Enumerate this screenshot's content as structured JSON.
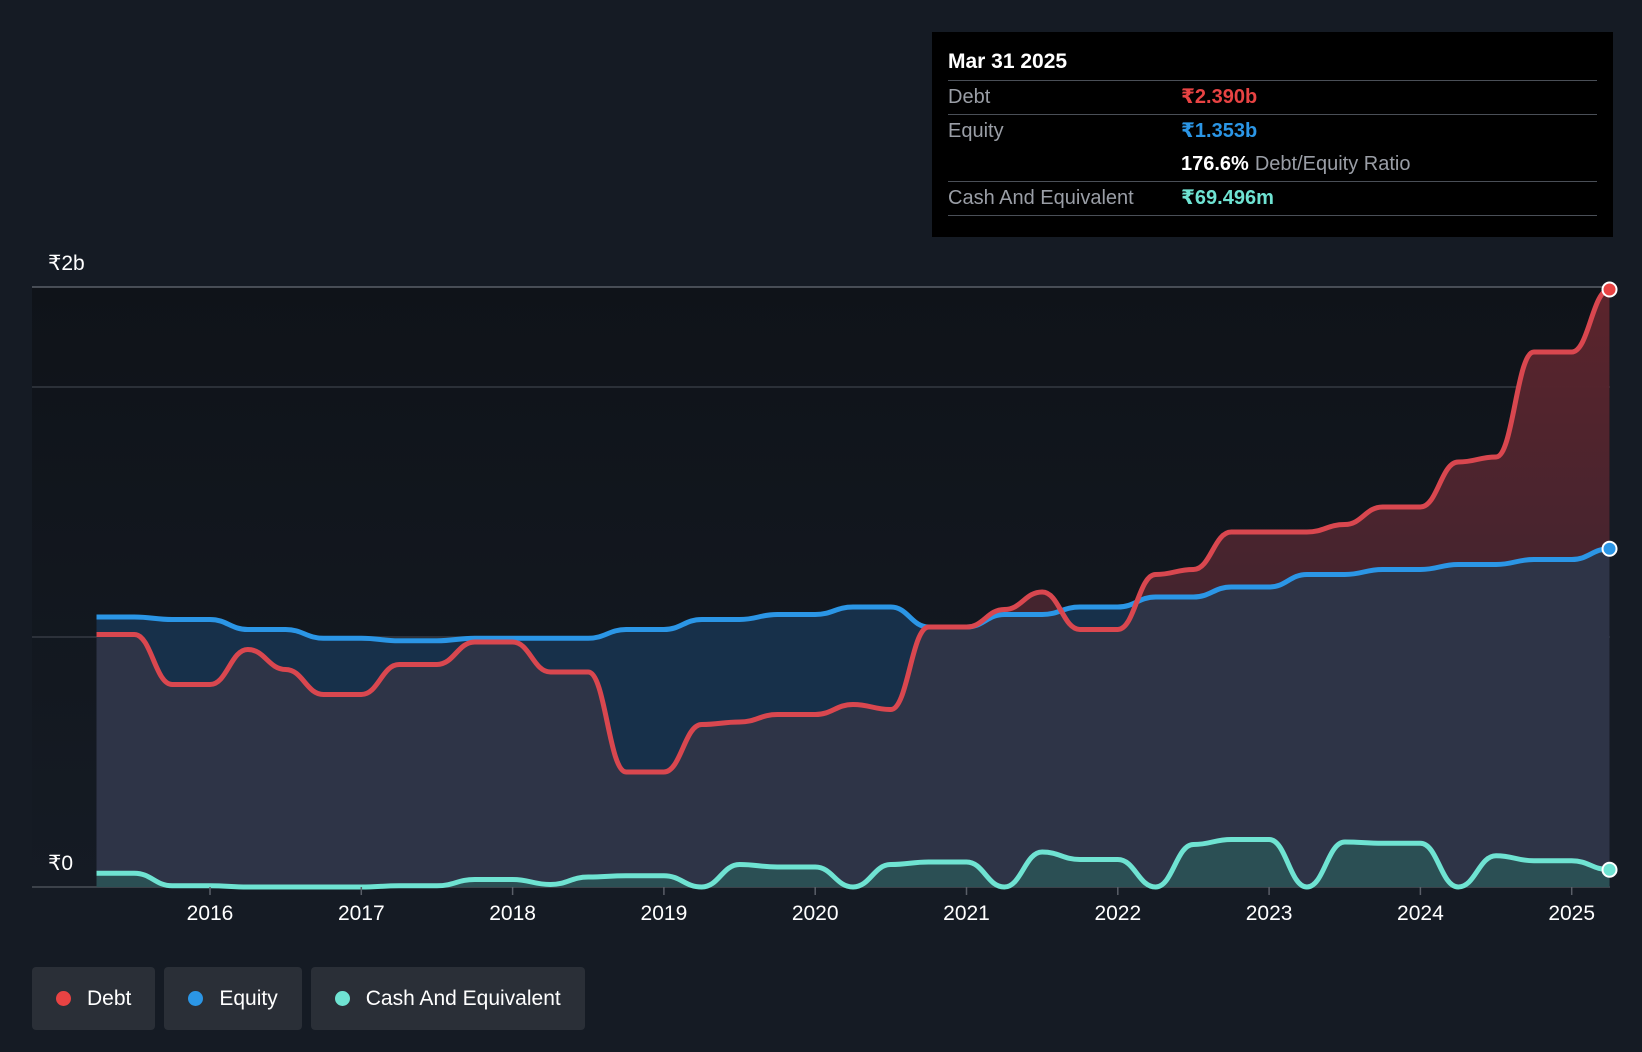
{
  "colors": {
    "background": "#151b24",
    "debt": "#e84343",
    "equity": "#2b96e6",
    "cash": "#6fe3d2",
    "gridline": "#3a3f48"
  },
  "tooltip": {
    "date": "Mar 31 2025",
    "debt_label": "Debt",
    "debt_value": "₹2.390b",
    "equity_label": "Equity",
    "equity_value": "₹1.353b",
    "ratio_value": "176.6%",
    "ratio_label": "Debt/Equity Ratio",
    "cash_label": "Cash And Equivalent",
    "cash_value": "₹69.496m"
  },
  "legend": [
    {
      "label": "Debt",
      "color": "#e84343"
    },
    {
      "label": "Equity",
      "color": "#2b96e6"
    },
    {
      "label": "Cash And Equivalent",
      "color": "#6fe3d2"
    }
  ],
  "chart_data": {
    "type": "area",
    "title": "",
    "xlabel": "",
    "ylabel": "",
    "y_tick_labels": [
      {
        "value": 2.4,
        "label": "₹2b"
      },
      {
        "value": 0,
        "label": "₹0"
      }
    ],
    "ylim": [
      0,
      2.4
    ],
    "xlim": [
      2015.25,
      2025.25
    ],
    "x_ticks": [
      2016,
      2017,
      2018,
      2019,
      2020,
      2021,
      2022,
      2023,
      2024,
      2025
    ],
    "gridlines": [
      2.4,
      2.0,
      1.0
    ],
    "series": [
      {
        "name": "Debt",
        "color": "#e84343",
        "points": [
          [
            2015.25,
            1.01
          ],
          [
            2015.5,
            1.01
          ],
          [
            2015.75,
            0.81
          ],
          [
            2016.0,
            0.81
          ],
          [
            2016.25,
            0.95
          ],
          [
            2016.5,
            0.87
          ],
          [
            2016.75,
            0.77
          ],
          [
            2017.0,
            0.77
          ],
          [
            2017.25,
            0.89
          ],
          [
            2017.5,
            0.89
          ],
          [
            2017.75,
            0.98
          ],
          [
            2018.0,
            0.98
          ],
          [
            2018.25,
            0.86
          ],
          [
            2018.5,
            0.86
          ],
          [
            2018.75,
            0.46
          ],
          [
            2019.0,
            0.46
          ],
          [
            2019.25,
            0.65
          ],
          [
            2019.5,
            0.66
          ],
          [
            2019.75,
            0.69
          ],
          [
            2020.0,
            0.69
          ],
          [
            2020.25,
            0.73
          ],
          [
            2020.5,
            0.71
          ],
          [
            2020.75,
            1.04
          ],
          [
            2021.0,
            1.04
          ],
          [
            2021.25,
            1.11
          ],
          [
            2021.5,
            1.18
          ],
          [
            2021.75,
            1.03
          ],
          [
            2022.0,
            1.03
          ],
          [
            2022.25,
            1.25
          ],
          [
            2022.5,
            1.27
          ],
          [
            2022.75,
            1.42
          ],
          [
            2023.0,
            1.42
          ],
          [
            2023.25,
            1.42
          ],
          [
            2023.5,
            1.45
          ],
          [
            2023.75,
            1.52
          ],
          [
            2024.0,
            1.52
          ],
          [
            2024.25,
            1.7
          ],
          [
            2024.5,
            1.72
          ],
          [
            2024.75,
            2.14
          ],
          [
            2025.0,
            2.14
          ],
          [
            2025.25,
            2.39
          ]
        ]
      },
      {
        "name": "Equity",
        "color": "#2b96e6",
        "points": [
          [
            2015.25,
            1.08
          ],
          [
            2015.5,
            1.08
          ],
          [
            2015.75,
            1.07
          ],
          [
            2016.0,
            1.07
          ],
          [
            2016.25,
            1.03
          ],
          [
            2016.5,
            1.03
          ],
          [
            2016.75,
            0.995
          ],
          [
            2017.0,
            0.995
          ],
          [
            2017.25,
            0.985
          ],
          [
            2017.5,
            0.985
          ],
          [
            2017.75,
            0.995
          ],
          [
            2018.0,
            0.995
          ],
          [
            2018.25,
            0.995
          ],
          [
            2018.5,
            0.995
          ],
          [
            2018.75,
            1.03
          ],
          [
            2019.0,
            1.03
          ],
          [
            2019.25,
            1.07
          ],
          [
            2019.5,
            1.07
          ],
          [
            2019.75,
            1.09
          ],
          [
            2020.0,
            1.09
          ],
          [
            2020.25,
            1.12
          ],
          [
            2020.5,
            1.12
          ],
          [
            2020.75,
            1.04
          ],
          [
            2021.0,
            1.04
          ],
          [
            2021.25,
            1.09
          ],
          [
            2021.5,
            1.09
          ],
          [
            2021.75,
            1.12
          ],
          [
            2022.0,
            1.12
          ],
          [
            2022.25,
            1.16
          ],
          [
            2022.5,
            1.16
          ],
          [
            2022.75,
            1.2
          ],
          [
            2023.0,
            1.2
          ],
          [
            2023.25,
            1.25
          ],
          [
            2023.5,
            1.25
          ],
          [
            2023.75,
            1.27
          ],
          [
            2024.0,
            1.27
          ],
          [
            2024.25,
            1.29
          ],
          [
            2024.5,
            1.29
          ],
          [
            2024.75,
            1.31
          ],
          [
            2025.0,
            1.31
          ],
          [
            2025.25,
            1.353
          ]
        ]
      },
      {
        "name": "Cash And Equivalent",
        "color": "#6fe3d2",
        "points": [
          [
            2015.25,
            0.055
          ],
          [
            2015.5,
            0.055
          ],
          [
            2015.75,
            0.005
          ],
          [
            2016.0,
            0.005
          ],
          [
            2016.25,
            0.0
          ],
          [
            2016.5,
            0.0
          ],
          [
            2016.75,
            0.0
          ],
          [
            2017.0,
            0.0
          ],
          [
            2017.25,
            0.005
          ],
          [
            2017.5,
            0.005
          ],
          [
            2017.75,
            0.03
          ],
          [
            2018.0,
            0.03
          ],
          [
            2018.25,
            0.01
          ],
          [
            2018.5,
            0.04
          ],
          [
            2018.75,
            0.045
          ],
          [
            2019.0,
            0.045
          ],
          [
            2019.25,
            0.0
          ],
          [
            2019.5,
            0.09
          ],
          [
            2019.75,
            0.08
          ],
          [
            2020.0,
            0.08
          ],
          [
            2020.25,
            0.0
          ],
          [
            2020.5,
            0.09
          ],
          [
            2020.75,
            0.1
          ],
          [
            2021.0,
            0.1
          ],
          [
            2021.25,
            0.0
          ],
          [
            2021.5,
            0.14
          ],
          [
            2021.75,
            0.11
          ],
          [
            2022.0,
            0.11
          ],
          [
            2022.25,
            0.0
          ],
          [
            2022.5,
            0.17
          ],
          [
            2022.75,
            0.19
          ],
          [
            2023.0,
            0.19
          ],
          [
            2023.25,
            0.0
          ],
          [
            2023.5,
            0.18
          ],
          [
            2023.75,
            0.175
          ],
          [
            2024.0,
            0.175
          ],
          [
            2024.25,
            0.0
          ],
          [
            2024.5,
            0.125
          ],
          [
            2024.75,
            0.105
          ],
          [
            2025.0,
            0.105
          ],
          [
            2025.25,
            0.069
          ]
        ]
      }
    ]
  }
}
